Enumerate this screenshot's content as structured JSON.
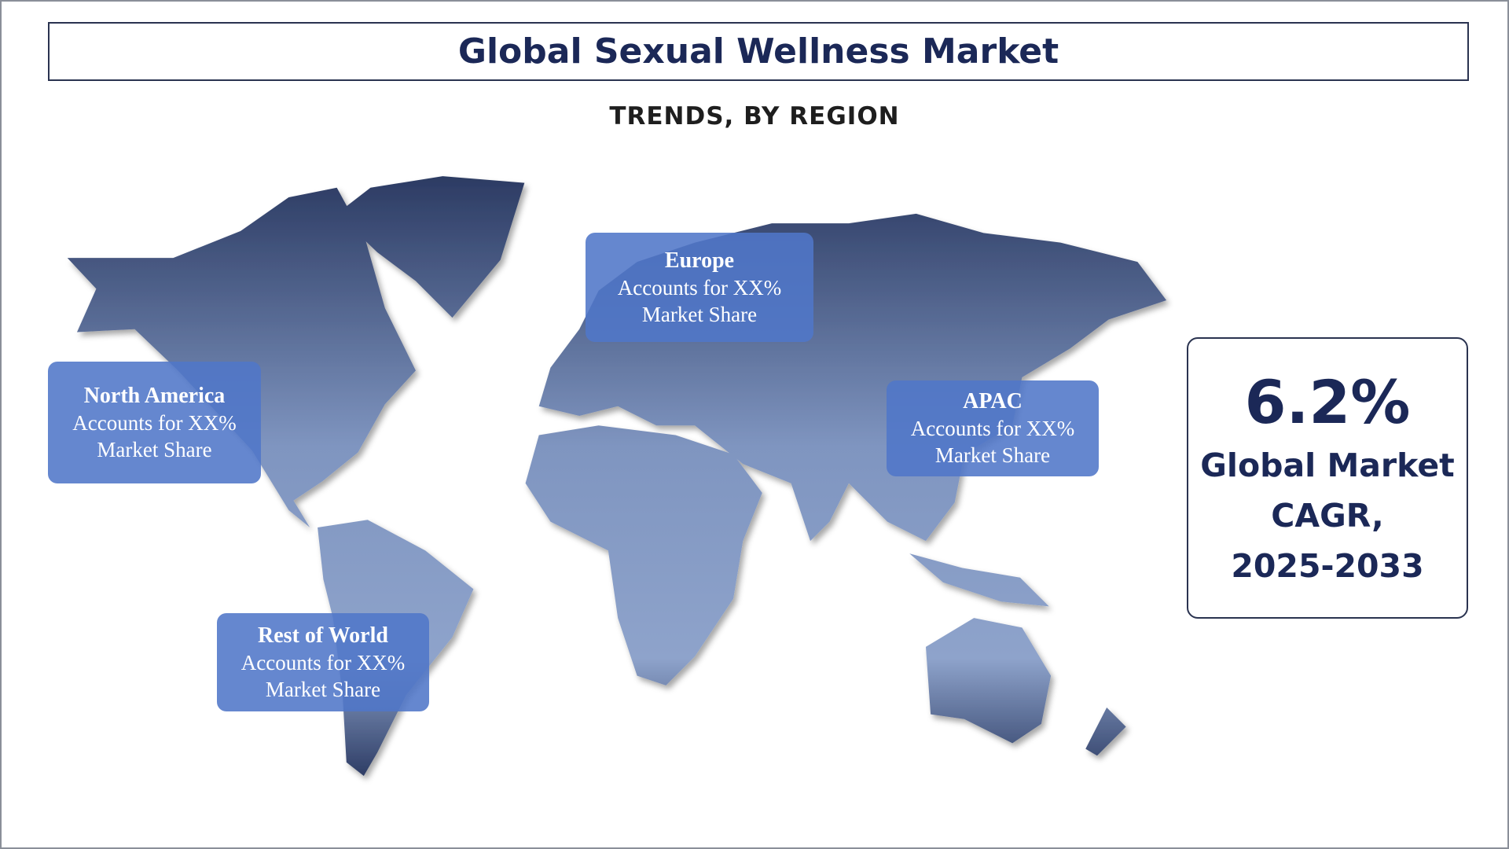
{
  "header": {
    "title": "Global Sexual Wellness Market",
    "subtitle": "TRENDS, BY REGION"
  },
  "regions": [
    {
      "name": "Europe",
      "lines": [
        "Accounts for XX%",
        "Market Share"
      ]
    },
    {
      "name": "North America",
      "lines": [
        "Accounts for XX%",
        "Market Share"
      ]
    },
    {
      "name": "APAC",
      "lines": [
        "Accounts for XX%",
        "Market Share"
      ]
    },
    {
      "name": "Rest of World",
      "lines": [
        "Accounts for XX%",
        "Market Share"
      ]
    }
  ],
  "cagr": {
    "value": "6.2%",
    "lines": [
      "Global Market",
      "CAGR,",
      "2025-2033"
    ]
  }
}
